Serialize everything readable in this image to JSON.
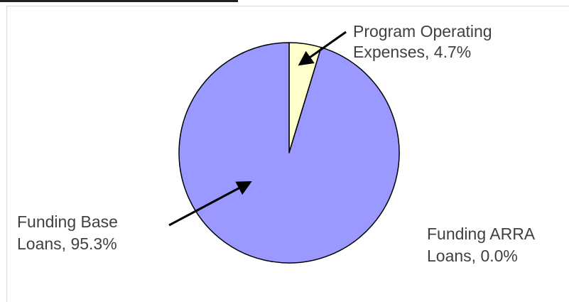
{
  "chart_data": {
    "type": "pie",
    "slices": [
      {
        "label": "Program Operating Expenses",
        "value": 4.7,
        "display": "4.7%",
        "color": "#ffffcc"
      },
      {
        "label": "Funding ARRA Loans",
        "value": 0.0,
        "display": "0.0%",
        "color": "#ccccff"
      },
      {
        "label": "Funding Base Loans",
        "value": 95.3,
        "display": "95.3%",
        "color": "#9999ff"
      }
    ],
    "annotations": [
      {
        "lines": [
          "Program Operating",
          "Expenses, 4.7%"
        ]
      },
      {
        "lines": [
          "Funding Base",
          "Loans, 95.3%"
        ]
      },
      {
        "lines": [
          "Funding ARRA",
          "Loans, 0.0%"
        ]
      }
    ]
  }
}
